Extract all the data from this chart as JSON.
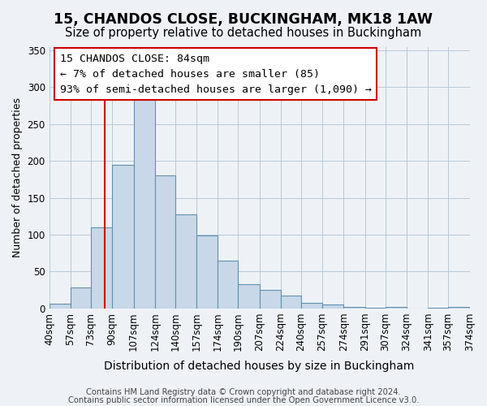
{
  "title": "15, CHANDOS CLOSE, BUCKINGHAM, MK18 1AW",
  "subtitle": "Size of property relative to detached houses in Buckingham",
  "xlabel": "Distribution of detached houses by size in Buckingham",
  "ylabel": "Number of detached properties",
  "footer_lines": [
    "Contains HM Land Registry data © Crown copyright and database right 2024.",
    "Contains public sector information licensed under the Open Government Licence v3.0."
  ],
  "bar_edges": [
    40,
    57,
    73,
    90,
    107,
    124,
    140,
    157,
    174,
    190,
    207,
    224,
    240,
    257,
    274,
    291,
    307,
    324,
    341,
    357,
    374
  ],
  "bar_heights": [
    7,
    28,
    110,
    195,
    290,
    180,
    128,
    99,
    65,
    33,
    25,
    17,
    8,
    5,
    2,
    1,
    2,
    0,
    1,
    2
  ],
  "bar_color": "#c8d8e8",
  "bar_edge_color": "#6090b0",
  "bar_edge_width": 0.8,
  "vline_x": 84,
  "vline_color": "#cc0000",
  "ylim": [
    0,
    355
  ],
  "annotation_box_text": "15 CHANDOS CLOSE: 84sqm\n← 7% of detached houses are smaller (85)\n93% of semi-detached houses are larger (1,090) →",
  "annotation_fontsize": 9.5,
  "annotation_box_edgecolor": "#cc0000",
  "tick_labels": [
    "40sqm",
    "57sqm",
    "73sqm",
    "90sqm",
    "107sqm",
    "124sqm",
    "140sqm",
    "157sqm",
    "174sqm",
    "190sqm",
    "207sqm",
    "224sqm",
    "240sqm",
    "257sqm",
    "274sqm",
    "291sqm",
    "307sqm",
    "324sqm",
    "341sqm",
    "357sqm",
    "374sqm"
  ],
  "background_color": "#eef2f7",
  "plot_background_color": "#eef2f7",
  "grid_color": "#b8c8d8",
  "title_fontsize": 12.5,
  "subtitle_fontsize": 10.5,
  "xlabel_fontsize": 10,
  "ylabel_fontsize": 9,
  "footer_fontsize": 7.2
}
